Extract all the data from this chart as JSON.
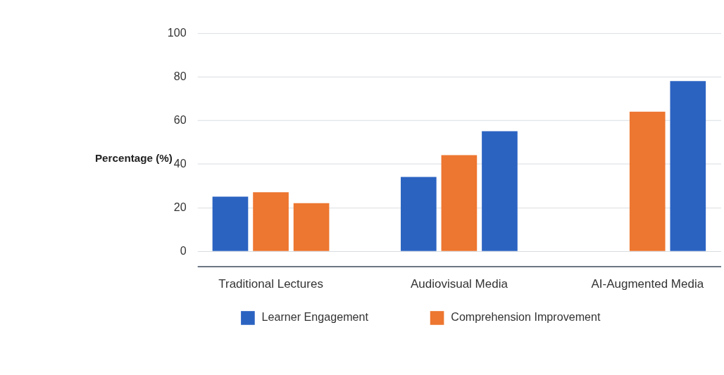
{
  "chart_data": {
    "type": "bar",
    "ylabel": "Percentage (%)",
    "categories": [
      "Traditional Lectures",
      "Audiovisual Media",
      "AI-Augmented Media"
    ],
    "series": [
      {
        "name": "Learner Engagement",
        "color": "#2b63c1",
        "values": [
          25,
          34,
          null
        ]
      },
      {
        "name": "Comprehension Improvement",
        "color": "#ed7630",
        "values": [
          27,
          44,
          64
        ]
      },
      {
        "colors": [
          "#ed7630",
          "#2b63c1",
          "#2b63c1"
        ],
        "values": [
          22,
          55,
          78
        ]
      }
    ],
    "ylim": [
      -7,
      100
    ],
    "yticks": [
      0,
      20,
      40,
      60,
      80,
      100
    ],
    "grid": "y",
    "legend": "bottom"
  }
}
